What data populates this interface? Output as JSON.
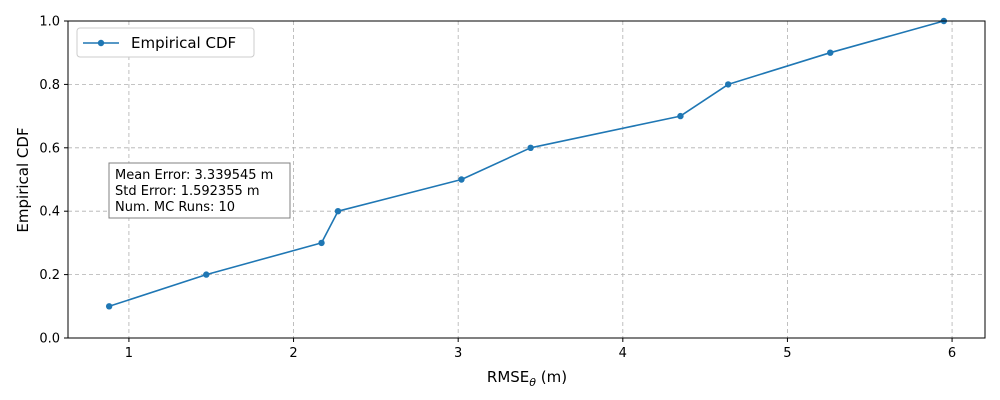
{
  "chart_data": {
    "type": "line",
    "xlabel_main": "RMSE",
    "xlabel_sub": "θ",
    "xlabel_unit": " (m)",
    "ylabel": "Empirical CDF",
    "xlim": [
      0.63,
      6.2
    ],
    "ylim": [
      0.0,
      1.0
    ],
    "xticks": [
      1,
      2,
      3,
      4,
      5,
      6
    ],
    "yticks": [
      0.0,
      0.2,
      0.4,
      0.6,
      0.8,
      1.0
    ],
    "xtick_labels": [
      "1",
      "2",
      "3",
      "4",
      "5",
      "6"
    ],
    "ytick_labels": [
      "0.0",
      "0.2",
      "0.4",
      "0.6",
      "0.8",
      "1.0"
    ],
    "grid": true,
    "legend_position": "top-left",
    "series": [
      {
        "name": "Empirical CDF",
        "color": "#1f77b4",
        "marker": "circle",
        "x": [
          0.88,
          1.47,
          2.17,
          2.27,
          3.02,
          3.44,
          4.35,
          4.64,
          5.26,
          5.95
        ],
        "y": [
          0.1,
          0.2,
          0.3,
          0.4,
          0.5,
          0.6,
          0.7,
          0.8,
          0.9,
          1.0
        ]
      }
    ],
    "annotation": {
      "lines": [
        "Mean Error: 3.339545 m",
        "Std Error: 1.592355 m",
        "Num. MC Runs: 10"
      ]
    }
  }
}
